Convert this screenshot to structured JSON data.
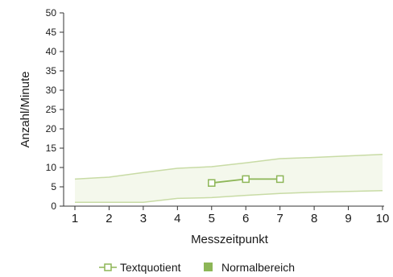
{
  "chart_data": {
    "type": "line",
    "xlabel": "Messzeitpunkt",
    "ylabel": "Anzahl/Minute",
    "xlim": [
      1,
      10
    ],
    "ylim": [
      0,
      50
    ],
    "xticks": [
      1,
      2,
      3,
      4,
      5,
      6,
      7,
      8,
      9,
      10
    ],
    "yticks": [
      0,
      5,
      10,
      15,
      20,
      25,
      30,
      35,
      40,
      45,
      50
    ],
    "grid": false,
    "legend_position": "bottom",
    "series": [
      {
        "name": "Textquotient",
        "type": "line",
        "marker": "square",
        "color": "#8db657",
        "x": [
          5,
          6,
          7
        ],
        "y": [
          6,
          7,
          7
        ]
      }
    ],
    "bands": [
      {
        "name": "Normalbereich",
        "type": "area",
        "color": "#c8dba5",
        "fill": "#f4f8ec",
        "x": [
          1,
          2,
          3,
          4,
          5,
          6,
          7,
          8,
          9,
          10
        ],
        "lower": [
          1,
          1,
          1,
          2,
          2.2,
          2.8,
          3.3,
          3.6,
          3.8,
          4
        ],
        "upper": [
          7,
          7.5,
          8.7,
          9.8,
          10.2,
          11.2,
          12.3,
          12.6,
          13,
          13.4
        ]
      }
    ],
    "legend": [
      {
        "label": "Textquotient",
        "icon": "line-square-marker"
      },
      {
        "label": "Normalbereich",
        "icon": "filled-square"
      }
    ]
  }
}
